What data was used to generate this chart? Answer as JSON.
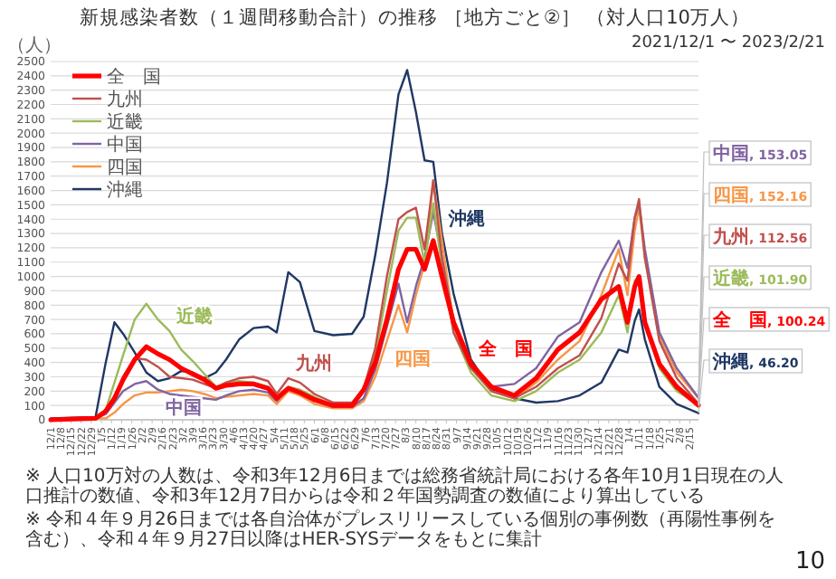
{
  "chart_data": {
    "type": "line",
    "title": "新規感染者数（１週間移動合計）の推移 ［地方ごと②］ （対人口10万人）",
    "subtitle": "2021/12/1 〜 2023/2/21",
    "ylabel": "（人）",
    "x": [
      "2021-12-01",
      "2022-01-01",
      "2022-01-08",
      "2022-01-14",
      "2022-01-20",
      "2022-01-28",
      "2022-02-05",
      "2022-02-13",
      "2022-02-21",
      "2022-03-01",
      "2022-03-09",
      "2022-03-17",
      "2022-03-25",
      "2022-04-01",
      "2022-04-10",
      "2022-04-20",
      "2022-04-30",
      "2022-05-06",
      "2022-05-14",
      "2022-05-22",
      "2022-06-01",
      "2022-06-14",
      "2022-06-27",
      "2022-07-05",
      "2022-07-13",
      "2022-07-21",
      "2022-07-29",
      "2022-08-04",
      "2022-08-10",
      "2022-08-16",
      "2022-08-22",
      "2022-08-28",
      "2022-09-05",
      "2022-09-17",
      "2022-10-01",
      "2022-10-17",
      "2022-11-01",
      "2022-11-16",
      "2022-12-01",
      "2022-12-16",
      "2022-12-28",
      "2023-01-03",
      "2023-01-08",
      "2023-01-11",
      "2023-01-15",
      "2023-01-25",
      "2023-02-06",
      "2023-02-21"
    ],
    "series": [
      {
        "name": "全　国",
        "color": "#ff0000",
        "values": [
          0,
          10,
          60,
          150,
          280,
          420,
          510,
          460,
          420,
          360,
          320,
          280,
          220,
          240,
          250,
          250,
          220,
          150,
          220,
          190,
          140,
          100,
          100,
          210,
          400,
          700,
          1050,
          1190,
          1190,
          1050,
          1250,
          1000,
          680,
          390,
          230,
          170,
          290,
          490,
          610,
          840,
          930,
          680,
          930,
          1000,
          680,
          390,
          230,
          100.24
        ]
      },
      {
        "name": "九州",
        "color": "#c0504d",
        "values": [
          0,
          10,
          50,
          150,
          300,
          430,
          420,
          370,
          300,
          290,
          280,
          250,
          220,
          260,
          290,
          300,
          270,
          180,
          290,
          260,
          180,
          120,
          120,
          220,
          500,
          1000,
          1400,
          1450,
          1480,
          1190,
          1670,
          1130,
          610,
          360,
          200,
          150,
          230,
          360,
          450,
          710,
          1090,
          970,
          1410,
          1540,
          1130,
          550,
          290,
          112.56
        ]
      },
      {
        "name": "近畿",
        "color": "#9bbb59",
        "values": [
          0,
          10,
          70,
          260,
          450,
          700,
          810,
          700,
          620,
          490,
          410,
          320,
          230,
          260,
          270,
          260,
          230,
          150,
          230,
          210,
          160,
          100,
          100,
          200,
          450,
          900,
          1320,
          1410,
          1410,
          1090,
          1510,
          1060,
          610,
          330,
          170,
          130,
          200,
          330,
          420,
          610,
          870,
          610,
          970,
          1000,
          680,
          360,
          200,
          101.9
        ]
      },
      {
        "name": "中国",
        "color": "#8064a2",
        "values": [
          0,
          10,
          40,
          120,
          200,
          250,
          270,
          210,
          180,
          170,
          160,
          150,
          140,
          170,
          200,
          210,
          190,
          130,
          220,
          190,
          130,
          90,
          90,
          150,
          350,
          650,
          950,
          680,
          930,
          1130,
          1450,
          1130,
          680,
          390,
          230,
          250,
          360,
          580,
          680,
          1030,
          1250,
          1060,
          1410,
          1510,
          1190,
          610,
          360,
          153.05
        ]
      },
      {
        "name": "四国",
        "color": "#f79646",
        "values": [
          0,
          10,
          10,
          50,
          110,
          170,
          190,
          190,
          200,
          210,
          200,
          180,
          150,
          160,
          170,
          180,
          170,
          110,
          200,
          170,
          110,
          80,
          80,
          130,
          300,
          550,
          800,
          610,
          870,
          1090,
          1670,
          1250,
          680,
          390,
          200,
          150,
          260,
          420,
          550,
          870,
          1190,
          870,
          1320,
          1480,
          1130,
          580,
          330,
          152.16
        ]
      },
      {
        "name": "沖縄",
        "color": "#1f3864",
        "values": [
          10,
          20,
          400,
          680,
          600,
          470,
          330,
          270,
          290,
          340,
          330,
          290,
          330,
          420,
          560,
          640,
          650,
          610,
          1030,
          960,
          620,
          590,
          600,
          720,
          1150,
          1650,
          2270,
          2440,
          2150,
          1810,
          1800,
          1300,
          880,
          420,
          210,
          150,
          120,
          130,
          170,
          260,
          490,
          470,
          690,
          770,
          560,
          230,
          110,
          46.2
        ]
      }
    ],
    "ylim": [
      0,
      2500
    ],
    "yticks": [
      0,
      100,
      200,
      300,
      400,
      500,
      600,
      700,
      800,
      900,
      1000,
      1100,
      1200,
      1300,
      1400,
      1500,
      1600,
      1700,
      1800,
      1900,
      2000,
      2100,
      2200,
      2300,
      2400,
      2500
    ],
    "xlim": [
      "2021-12-01",
      "2023-02-21"
    ],
    "xticks": [
      {
        "value": "2021-12-01",
        "label": "12/1"
      },
      {
        "value": "2021-12-08",
        "label": "12/8"
      },
      {
        "value": "2021-12-15",
        "label": "12/15"
      },
      {
        "value": "2021-12-22",
        "label": "12/22"
      },
      {
        "value": "2021-12-29",
        "label": "12/29"
      },
      {
        "value": "2022-01-05",
        "label": "1/5"
      },
      {
        "value": "2022-01-12",
        "label": "1/12"
      },
      {
        "value": "2022-01-19",
        "label": "1/19"
      },
      {
        "value": "2022-01-26",
        "label": "1/26"
      },
      {
        "value": "2022-02-02",
        "label": "2/2"
      },
      {
        "value": "2022-02-09",
        "label": "2/9"
      },
      {
        "value": "2022-02-16",
        "label": "2/16"
      },
      {
        "value": "2022-02-23",
        "label": "2/23"
      },
      {
        "value": "2022-03-02",
        "label": "3/2"
      },
      {
        "value": "2022-03-09",
        "label": "3/9"
      },
      {
        "value": "2022-03-16",
        "label": "3/16"
      },
      {
        "value": "2022-03-23",
        "label": "3/23"
      },
      {
        "value": "2022-03-30",
        "label": "3/30"
      },
      {
        "value": "2022-04-06",
        "label": "4/6"
      },
      {
        "value": "2022-04-13",
        "label": "4/13"
      },
      {
        "value": "2022-04-20",
        "label": "4/20"
      },
      {
        "value": "2022-04-27",
        "label": "4/27"
      },
      {
        "value": "2022-05-04",
        "label": "5/4"
      },
      {
        "value": "2022-05-11",
        "label": "5/11"
      },
      {
        "value": "2022-05-18",
        "label": "5/18"
      },
      {
        "value": "2022-05-25",
        "label": "5/25"
      },
      {
        "value": "2022-06-01",
        "label": "6/1"
      },
      {
        "value": "2022-06-08",
        "label": "6/8"
      },
      {
        "value": "2022-06-15",
        "label": "6/15"
      },
      {
        "value": "2022-06-22",
        "label": "6/22"
      },
      {
        "value": "2022-06-29",
        "label": "6/29"
      },
      {
        "value": "2022-07-06",
        "label": "7/6"
      },
      {
        "value": "2022-07-13",
        "label": "7/13"
      },
      {
        "value": "2022-07-20",
        "label": "7/20"
      },
      {
        "value": "2022-07-27",
        "label": "7/27"
      },
      {
        "value": "2022-08-03",
        "label": "8/3"
      },
      {
        "value": "2022-08-10",
        "label": "8/10"
      },
      {
        "value": "2022-08-17",
        "label": "8/17"
      },
      {
        "value": "2022-08-24",
        "label": "8/24"
      },
      {
        "value": "2022-08-31",
        "label": "8/31"
      },
      {
        "value": "2022-09-07",
        "label": "9/7"
      },
      {
        "value": "2022-09-14",
        "label": "9/14"
      },
      {
        "value": "2022-09-21",
        "label": "9/21"
      },
      {
        "value": "2022-09-28",
        "label": "9/28"
      },
      {
        "value": "2022-10-05",
        "label": "10/5"
      },
      {
        "value": "2022-10-12",
        "label": "10/12"
      },
      {
        "value": "2022-10-19",
        "label": "10/19"
      },
      {
        "value": "2022-10-26",
        "label": "10/26"
      },
      {
        "value": "2022-11-02",
        "label": "11/2"
      },
      {
        "value": "2022-11-09",
        "label": "11/9"
      },
      {
        "value": "2022-11-16",
        "label": "11/16"
      },
      {
        "value": "2022-11-23",
        "label": "11/23"
      },
      {
        "value": "2022-11-30",
        "label": "11/30"
      },
      {
        "value": "2022-12-07",
        "label": "12/7"
      },
      {
        "value": "2022-12-14",
        "label": "12/14"
      },
      {
        "value": "2022-12-21",
        "label": "12/21"
      },
      {
        "value": "2022-12-28",
        "label": "12/28"
      },
      {
        "value": "2023-01-04",
        "label": "1/4"
      },
      {
        "value": "2023-01-11",
        "label": "1/11"
      },
      {
        "value": "2023-01-18",
        "label": "1/18"
      },
      {
        "value": "2023-01-25",
        "label": "1/25"
      },
      {
        "value": "2023-02-01",
        "label": "2/1"
      },
      {
        "value": "2023-02-08",
        "label": "2/8"
      },
      {
        "value": "2023-02-15",
        "label": "2/15"
      }
    ],
    "grid": "y",
    "legend": "top left",
    "marker": "none",
    "line_style": "solid",
    "annotations": [
      {
        "text": "近畿",
        "x": "2022-02-21",
        "y": 620
      },
      {
        "text": "九州",
        "x": "2022-05-14",
        "y": 290
      },
      {
        "text": "中国",
        "x": "2022-02-13",
        "y": 210
      },
      {
        "text": "四国",
        "x": "2022-07-21",
        "y": 550
      },
      {
        "text": "沖縄",
        "x": "2022-08-28",
        "y": 1300
      },
      {
        "text": "全　国",
        "x": "2022-09-17",
        "y": 390
      },
      {
        "text": "中国, 153.05",
        "x": "2023-02-21",
        "y": 153.05
      },
      {
        "text": "四国, 152.16",
        "x": "2023-02-21",
        "y": 152.16
      },
      {
        "text": "九州, 112.56",
        "x": "2023-02-21",
        "y": 112.56
      },
      {
        "text": "近畿, 101.90",
        "x": "2023-02-21",
        "y": 101.9
      },
      {
        "text": "全　国, 100.24",
        "x": "2023-02-21",
        "y": 100.24
      },
      {
        "text": "沖縄, 46.20",
        "x": "2023-02-21",
        "y": 46.2
      },
      "※ 人口10万対の人数は、令和3年12月6日までは総務省統計局における各年10月1日現在の人口推計の数値、令和3年12月7日からは令和２年国勢調査の数値により算出している",
      "※ 令和４年９月26日までは各自治体がプレスリリースしている個別の事例数（再陽性事例を含む）、令和４年９月27日以降はHER-SYSデータをもとに集計",
      "10"
    ]
  }
}
